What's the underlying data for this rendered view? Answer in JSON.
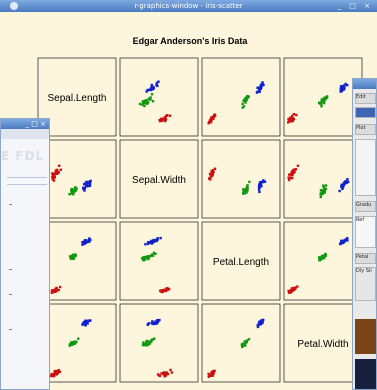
{
  "main_window": {
    "title": "r-graphics-window - iris-scatter"
  },
  "chart_data": {
    "type": "scatter",
    "title": "Edgar Anderson's Iris Data",
    "variables": [
      "Sepal.Length",
      "Sepal.Width",
      "Petal.Length",
      "Petal.Width"
    ],
    "grid": false,
    "legend": "none",
    "series": [
      {
        "color": "#cc1111",
        "means": {
          "Sepal.Length": 5.0,
          "Sepal.Width": 3.4,
          "Petal.Length": 1.5,
          "Petal.Width": 0.25
        }
      },
      {
        "color": "#119911",
        "means": {
          "Sepal.Length": 5.9,
          "Sepal.Width": 2.8,
          "Petal.Length": 4.3,
          "Petal.Width": 1.3
        }
      },
      {
        "color": "#1122cc",
        "means": {
          "Sepal.Length": 6.6,
          "Sepal.Width": 3.0,
          "Petal.Length": 5.6,
          "Petal.Width": 2.0
        }
      }
    ],
    "ranges": {
      "Sepal.Length": [
        4.3,
        7.9
      ],
      "Sepal.Width": [
        2.0,
        4.4
      ],
      "Petal.Length": [
        1.0,
        6.9
      ],
      "Petal.Width": [
        0.1,
        2.5
      ]
    }
  },
  "left_window": {
    "watermark": "E FDL"
  },
  "right_panel": {
    "rows": [
      "Edit",
      "Plot",
      "Gradu",
      "Ref",
      "Petal",
      "Dly Sli"
    ]
  },
  "colors": {
    "plot_bg": "#fdf5dc",
    "titlebar": "#4a7cc0",
    "setosa": "#cc1111",
    "versicolor": "#119911",
    "virginica": "#1122cc"
  }
}
